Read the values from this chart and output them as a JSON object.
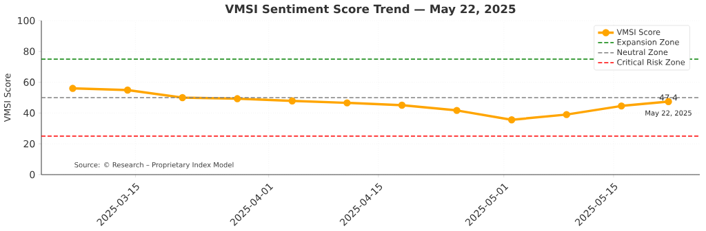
{
  "chart_data": {
    "type": "line",
    "title": "VMSI Sentiment Score Trend — May 22, 2025",
    "ylabel": "VMSI Score",
    "x": [
      "2025-03-07",
      "2025-03-14",
      "2025-03-21",
      "2025-03-28",
      "2025-04-04",
      "2025-04-11",
      "2025-04-18",
      "2025-04-25",
      "2025-05-02",
      "2025-05-09",
      "2025-05-16",
      "2025-05-22"
    ],
    "series": [
      {
        "name": "VMSI Score",
        "color": "#ffa500",
        "values": [
          56.0,
          54.9,
          50.0,
          49.3,
          47.9,
          46.6,
          45.1,
          41.7,
          35.6,
          39.0,
          44.6,
          47.4
        ]
      }
    ],
    "xlim": [
      "2025-03-03",
      "2025-05-26"
    ],
    "ylim": [
      0,
      100
    ],
    "xticks": [
      "2025-03-15",
      "2025-04-01",
      "2025-04-15",
      "2025-05-01",
      "2025-05-15"
    ],
    "yticks": [
      0,
      20,
      40,
      60,
      80,
      100
    ],
    "ref_lines": [
      {
        "axis": "y",
        "value": 75,
        "label": "Expansion Zone",
        "color": "#008000",
        "line_style": "dashed"
      },
      {
        "axis": "y",
        "value": 50,
        "label": "Neutral Zone",
        "color": "#808080",
        "line_style": "dashed"
      },
      {
        "axis": "y",
        "value": 25,
        "label": "Critical Risk Zone",
        "color": "#ff0000",
        "line_style": "dashed"
      }
    ],
    "annotations": [
      {
        "text": "47.4",
        "x": "2025-05-22",
        "y": 47.4
      },
      {
        "text": "May 22, 2025",
        "x": "2025-05-22",
        "y": 47.4
      },
      "Source: © Research – Proprietary Index Model"
    ],
    "grid": true,
    "legend": "top right",
    "marker": "circle",
    "line_style": "solid"
  }
}
